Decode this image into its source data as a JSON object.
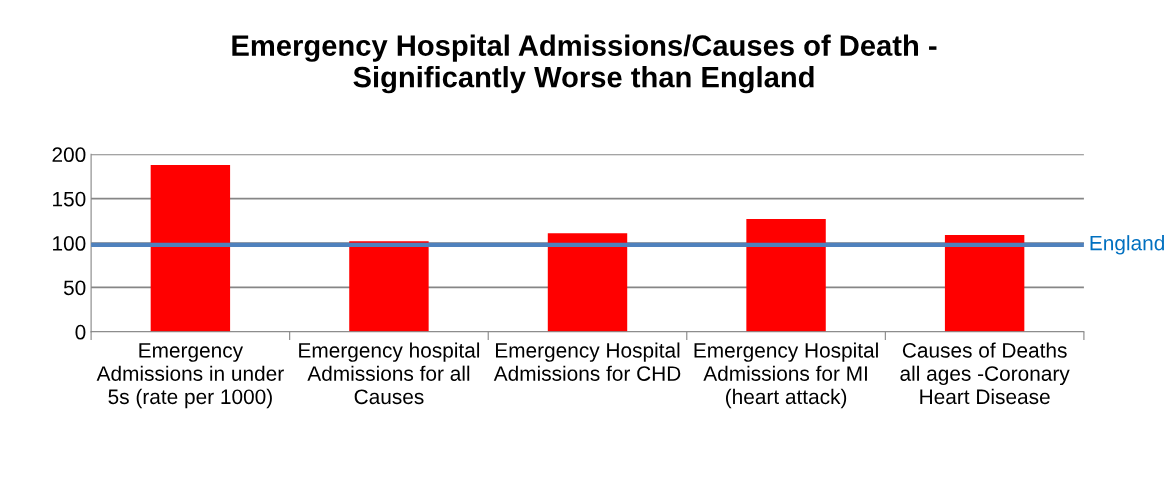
{
  "chart_data": {
    "type": "bar",
    "title": "Emergency Hospital Admissions/Causes of Death -\nSignificantly Worse than England",
    "categories": [
      "Emergency Admissions in under 5s (rate per 1000)",
      "Emergency hospital Admissions for all Causes",
      "Emergency Hospital Admissions for CHD",
      "Emergency Hospital Admissions for MI (heart attack)",
      "Causes of Deaths all ages -Coronary Heart Disease"
    ],
    "values": [
      188,
      102,
      111,
      127,
      109
    ],
    "color": "#ff0000",
    "ylim": [
      0,
      200
    ],
    "yticks": [
      0,
      50,
      100,
      150,
      200
    ],
    "grid": "y",
    "ref_lines": [
      {
        "axis": "y",
        "value": 98,
        "label": "England",
        "color": "#4f81bd"
      }
    ]
  }
}
